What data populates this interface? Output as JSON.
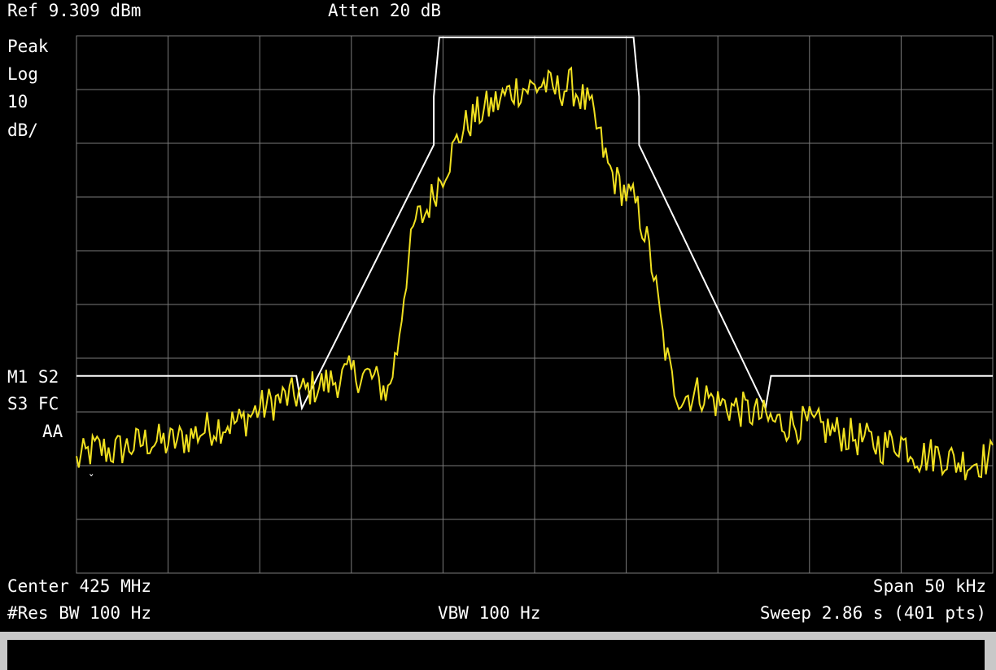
{
  "header": {
    "ref_level": "Ref 9.309 dBm",
    "attenuation": "Atten 20 dB"
  },
  "left_annotations": {
    "detector": "Peak",
    "scale_type": "Log",
    "scale_value": "10",
    "scale_unit": "dB/",
    "flags_line1": "M1 S2",
    "flags_line2": "S3 FC",
    "flags_line3": "AA"
  },
  "footer": {
    "center_freq": "Center 425 MHz",
    "span": "Span 50 kHz",
    "res_bw": "#Res BW 100 Hz",
    "vbw": "VBW 100 Hz",
    "sweep": "Sweep 2.86 s (401 pts)"
  },
  "colors": {
    "trace": "#f0e020",
    "mask": "#ffffff",
    "grid": "#7a7a7a",
    "background": "#000000"
  },
  "chart_data": {
    "type": "line",
    "x_unit": "kHz offset from center",
    "y_unit": "dBm",
    "xlim": [
      -25,
      25
    ],
    "ylim": [
      -90.691,
      9.309
    ],
    "x_divisions": 10,
    "y_divisions": 10,
    "grid": true,
    "trace_points": 401,
    "series": [
      {
        "role": "trace",
        "x": [
          -25,
          -24,
          -23,
          -22,
          -21,
          -20,
          -19,
          -18,
          -17,
          -16,
          -15,
          -14,
          -13,
          -12,
          -11,
          -10,
          -9,
          -8,
          -7.5,
          -7,
          -6.5,
          -6,
          -5.5,
          -5,
          -4.5,
          -4,
          -3.5,
          -3,
          -2.5,
          -2,
          -1.5,
          -1,
          -0.5,
          0,
          0.5,
          1,
          1.5,
          2,
          2.5,
          3,
          3.5,
          4,
          4.5,
          5,
          5.5,
          6,
          6.5,
          7,
          7.5,
          8,
          9,
          10,
          11,
          12,
          13,
          14,
          15,
          16,
          17,
          18,
          19,
          20,
          21,
          22,
          23,
          24,
          25
        ],
        "y": [
          -70,
          -67.5,
          -68,
          -67,
          -66,
          -66.5,
          -65.5,
          -64,
          -63,
          -62.5,
          -60,
          -58.5,
          -57.5,
          -56,
          -55,
          -53.5,
          -54,
          -57,
          -49,
          -35,
          -25,
          -24,
          -20,
          -16,
          -12.5,
          -8.5,
          -6.5,
          -5,
          -4,
          -3,
          -1.5,
          -0.5,
          -0.5,
          -0.3,
          0.5,
          -1,
          -0.5,
          0,
          -2,
          -4,
          -9,
          -15,
          -18,
          -20,
          -22,
          -27,
          -35,
          -47,
          -55,
          -58,
          -57,
          -59,
          -60,
          -61,
          -62.5,
          -63,
          -63,
          -64,
          -65,
          -66,
          -67,
          -66,
          -69,
          -68.5,
          -70,
          -70,
          -69
        ]
      },
      {
        "role": "limit-mask",
        "x": [
          -25,
          -13,
          -12.7,
          -5.5,
          -5.5,
          -5.2,
          5.4,
          5.7,
          5.7,
          12.6,
          12.9,
          25
        ],
        "y": [
          -54,
          -54,
          -60,
          -11,
          -2,
          9,
          9,
          -2,
          -11,
          -60,
          -54,
          -54
        ]
      }
    ]
  }
}
